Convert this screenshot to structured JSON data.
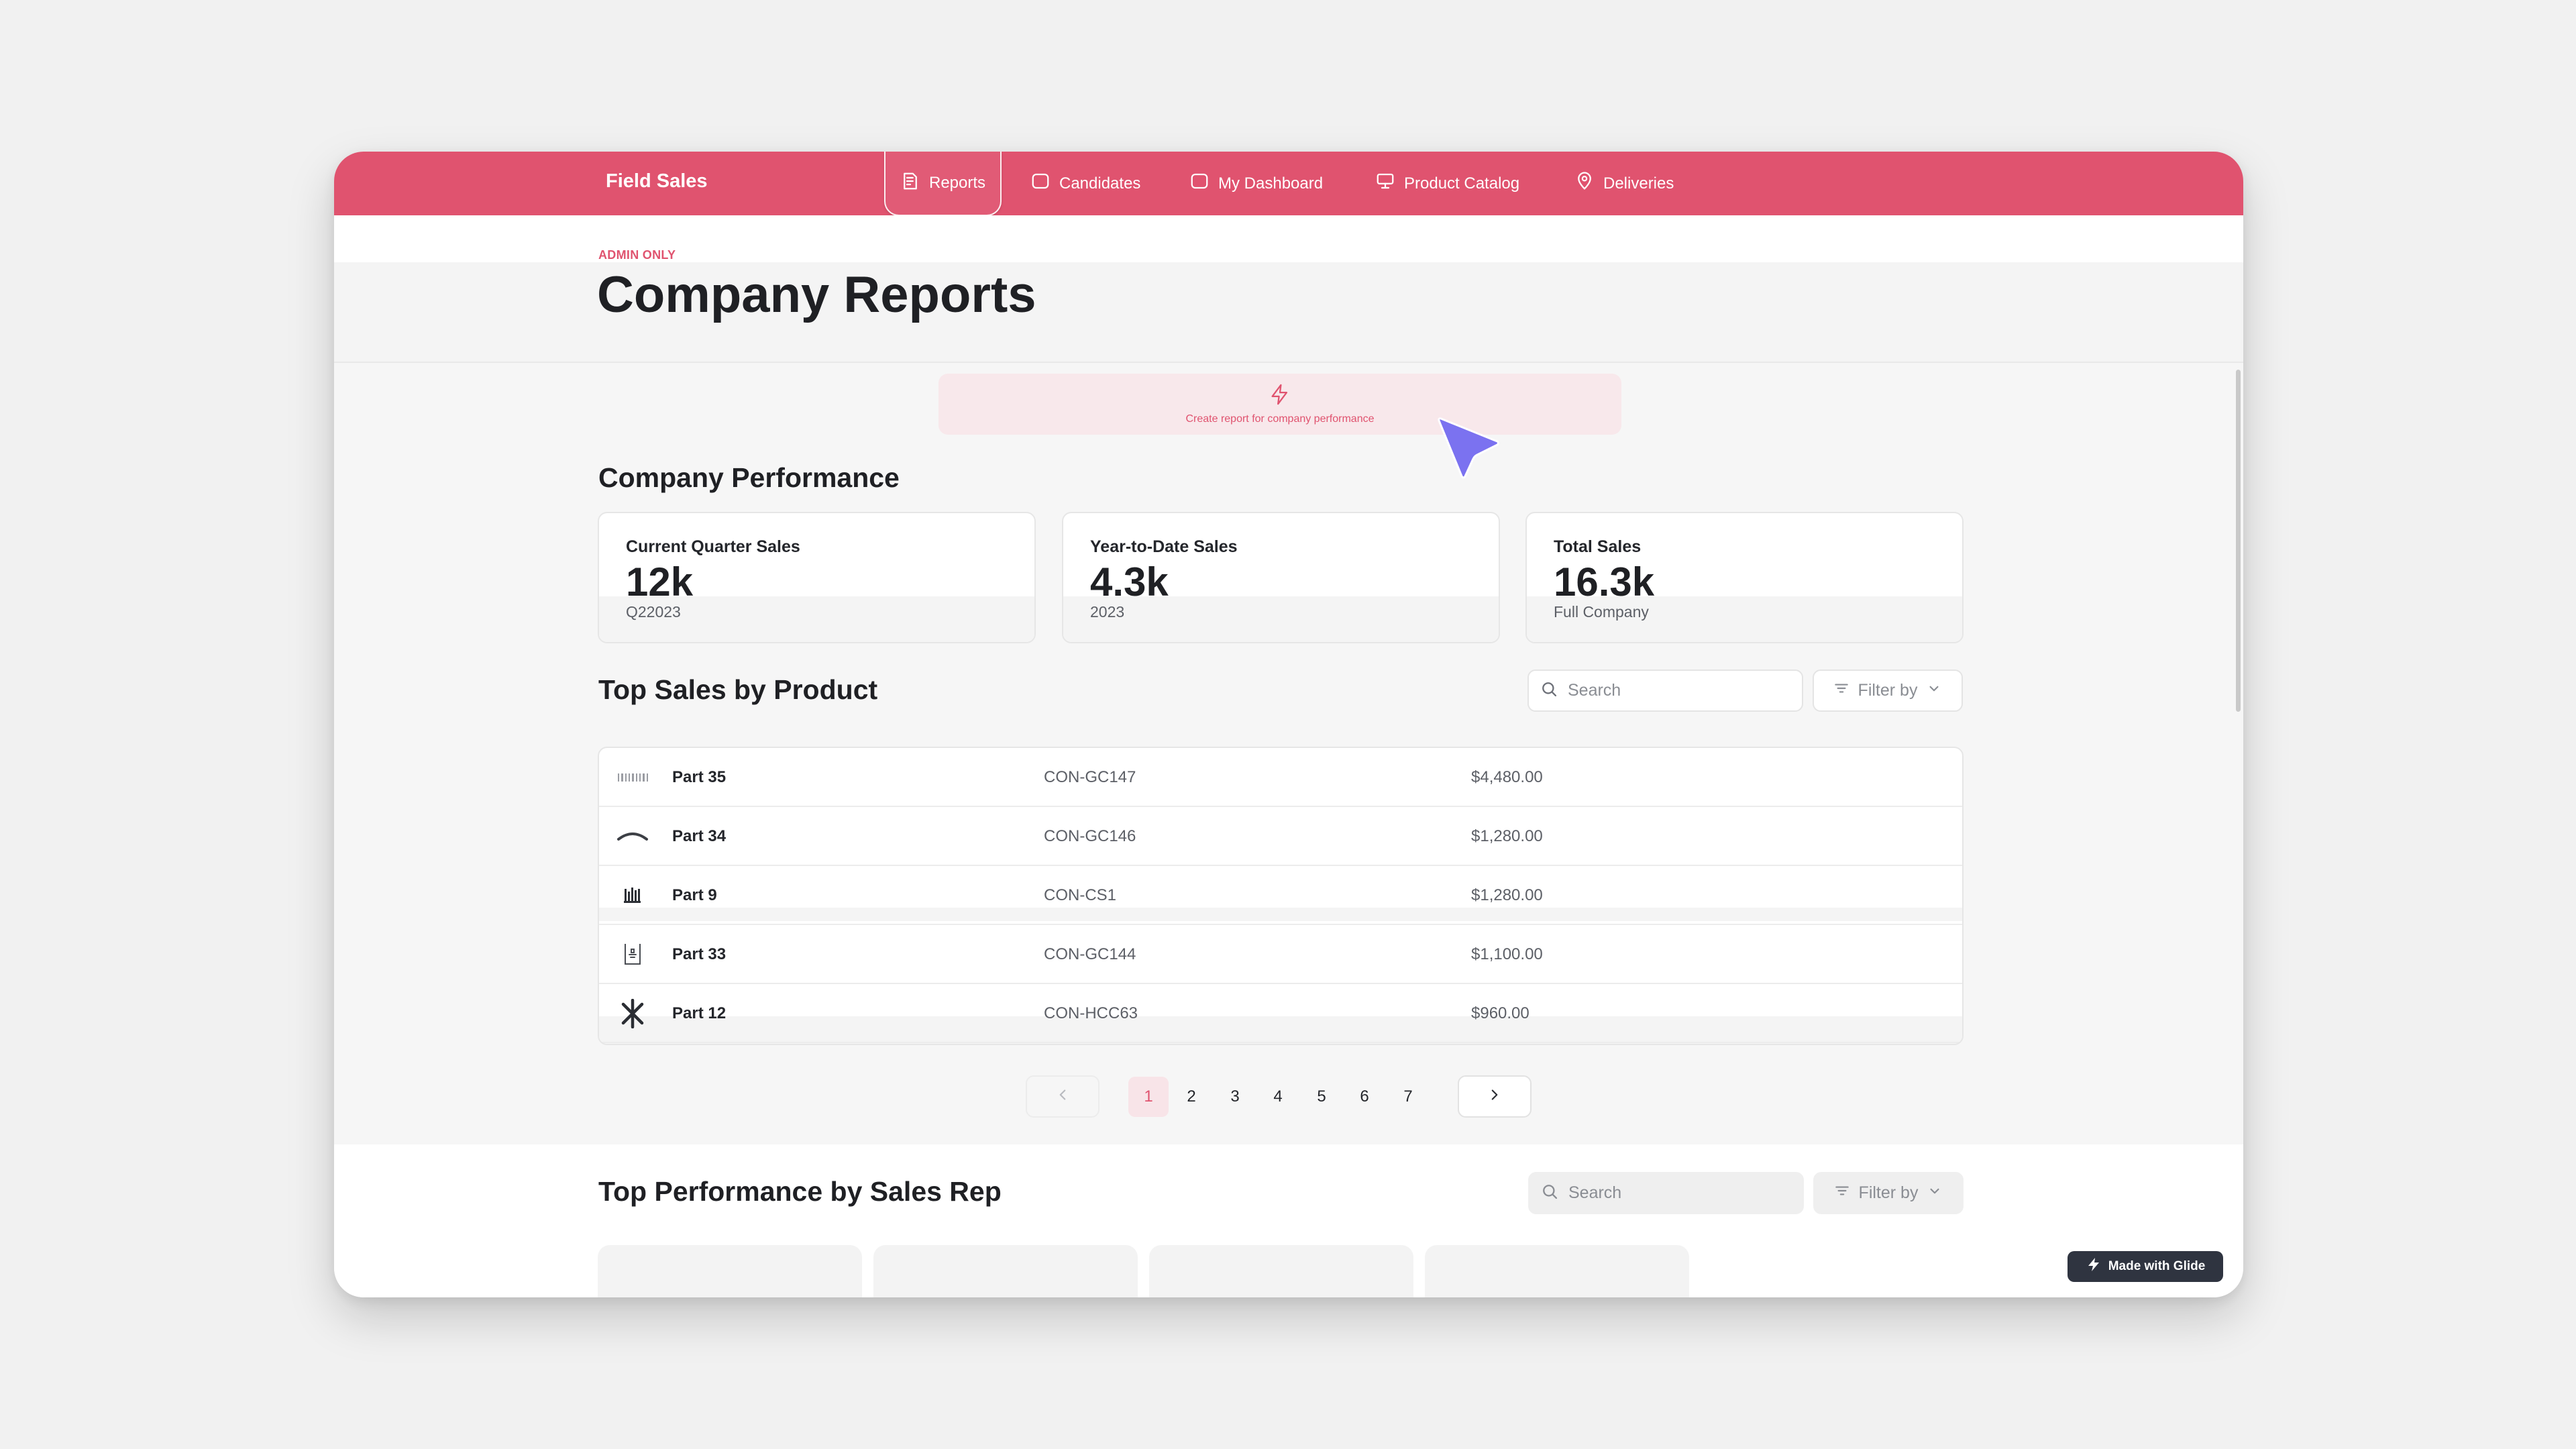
{
  "app": {
    "title": "Field Sales"
  },
  "nav": {
    "items": [
      {
        "label": "Reports",
        "icon": "reports-icon",
        "active": true
      },
      {
        "label": "Candidates",
        "icon": "square-icon",
        "active": false
      },
      {
        "label": "My Dashboard",
        "icon": "square-icon",
        "active": false
      },
      {
        "label": "Product Catalog",
        "icon": "monitor-icon",
        "active": false
      },
      {
        "label": "Deliveries",
        "icon": "location-pin-icon",
        "active": false
      }
    ]
  },
  "header": {
    "badge": "ADMIN ONLY",
    "title": "Company Reports"
  },
  "create_report": {
    "label": "Create report for company performance",
    "icon": "lightning-icon"
  },
  "performance": {
    "title": "Company Performance",
    "cards": [
      {
        "label": "Current Quarter Sales",
        "value": "12k",
        "sub": "Q22023"
      },
      {
        "label": "Year-to-Date Sales",
        "value": "4.3k",
        "sub": "2023"
      },
      {
        "label": "Total Sales",
        "value": "16.3k",
        "sub": "Full Company"
      }
    ]
  },
  "top_products": {
    "title": "Top Sales by Product",
    "search_placeholder": "Search",
    "filter_label": "Filter by",
    "rows": [
      {
        "name": "Part 35",
        "code": "CON-GC147",
        "price": "$4,480.00",
        "icon": "barcode-part-icon"
      },
      {
        "name": "Part 34",
        "code": "CON-GC146",
        "price": "$1,280.00",
        "icon": "arc-part-icon"
      },
      {
        "name": "Part 9",
        "code": "CON-CS1",
        "price": "$1,280.00",
        "icon": "bars-part-icon"
      },
      {
        "name": "Part 33",
        "code": "CON-GC144",
        "price": "$1,100.00",
        "icon": "box-part-icon"
      },
      {
        "name": "Part 12",
        "code": "CON-HCC63",
        "price": "$960.00",
        "icon": "asterisk-part-icon"
      }
    ]
  },
  "pagination": {
    "pages": [
      "1",
      "2",
      "3",
      "4",
      "5",
      "6",
      "7"
    ],
    "current": "1"
  },
  "sales_reps": {
    "title": "Top Performance by Sales Rep",
    "search_placeholder": "Search",
    "filter_label": "Filter by"
  },
  "badge": {
    "label": "Made with Glide"
  },
  "colors": {
    "brand": "#e0536f",
    "brand_tint": "#f8e8eb",
    "cursor": "#7b72f0",
    "badge_bg": "#2f3440"
  }
}
